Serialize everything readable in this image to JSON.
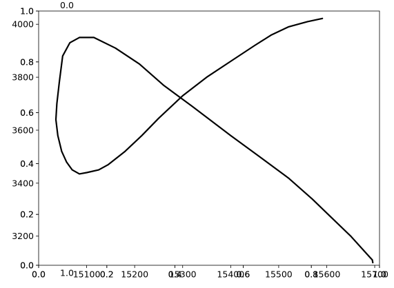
{
  "chart_data": {
    "type": "line",
    "axes": [
      {
        "role": "data",
        "xlim": [
          15000,
          15710
        ],
        "ylim": [
          3090,
          4050
        ],
        "x_ticks": [
          15100,
          15200,
          15300,
          15400,
          15500,
          15600,
          15700
        ],
        "x_tick_labels": [
          "15100",
          "15200",
          "15300",
          "15400",
          "15500",
          "15600",
          "15700"
        ],
        "y_ticks": [
          3200,
          3400,
          3600,
          3800,
          4000
        ],
        "y_tick_labels": [
          "3200",
          "3400",
          "3600",
          "3800",
          "4000"
        ],
        "series": [
          {
            "color": "#000000",
            "x": [
              15591,
              15560,
              15520,
              15485,
              15450,
              15400,
              15350,
              15300,
              15250,
              15215,
              15180,
              15145,
              15125,
              15100,
              15085,
              15070,
              15058,
              15048,
              15040,
              15036,
              15038,
              15043,
              15050,
              15065,
              15085,
              15115,
              15160,
              15210,
              15260,
              15320,
              15400,
              15460,
              15520,
              15570,
              15610,
              15650,
              15675,
              15690,
              15695,
              15696
            ],
            "y": [
              4022,
              4010,
              3990,
              3960,
              3920,
              3860,
              3800,
              3730,
              3645,
              3580,
              3520,
              3470,
              3450,
              3440,
              3435,
              3450,
              3480,
              3520,
              3580,
              3640,
              3700,
              3780,
              3880,
              3930,
              3950,
              3950,
              3910,
              3850,
              3770,
              3690,
              3580,
              3500,
              3420,
              3340,
              3270,
              3200,
              3150,
              3120,
              3110,
              3100
            ]
          }
        ]
      },
      {
        "role": "overlay",
        "xlim": [
          0,
          1
        ],
        "ylim": [
          0,
          1
        ],
        "x_ticks": [
          0,
          0.2,
          0.4,
          0.6,
          0.8,
          1.0
        ],
        "x_tick_labels": [
          "0.0",
          "0.2",
          "0.4",
          "0.6",
          "0.8",
          "1.0"
        ],
        "y_ticks": [
          0,
          0.2,
          0.4,
          0.6,
          0.8,
          1.0
        ],
        "y_tick_labels": [
          "0.0",
          "0.2",
          "0.4",
          "0.6",
          "0.8",
          "1.0"
        ]
      },
      {
        "role": "overlay",
        "xlim": [
          0,
          1
        ],
        "ylim": [
          0,
          1
        ],
        "x_ticks": [
          0,
          0.2,
          0.4,
          0.6,
          0.8,
          1.0
        ],
        "x_tick_labels": [
          "0.0",
          "0.2",
          "0.4",
          "0.6",
          "0.8",
          "1.0"
        ],
        "y_ticks": [
          0,
          0.2,
          0.4,
          0.6,
          0.8,
          1.0
        ],
        "y_tick_labels": [
          "0.0",
          "0.2",
          "0.4",
          "0.6",
          "0.8",
          "1.0"
        ]
      },
      {
        "role": "overlay",
        "xlim": [
          0,
          1
        ],
        "ylim": [
          0,
          1
        ],
        "x_ticks": [],
        "x_tick_labels": [],
        "y_ticks": [],
        "y_tick_labels": [],
        "stray_labels": [
          "0.0",
          "1.0"
        ]
      }
    ]
  }
}
